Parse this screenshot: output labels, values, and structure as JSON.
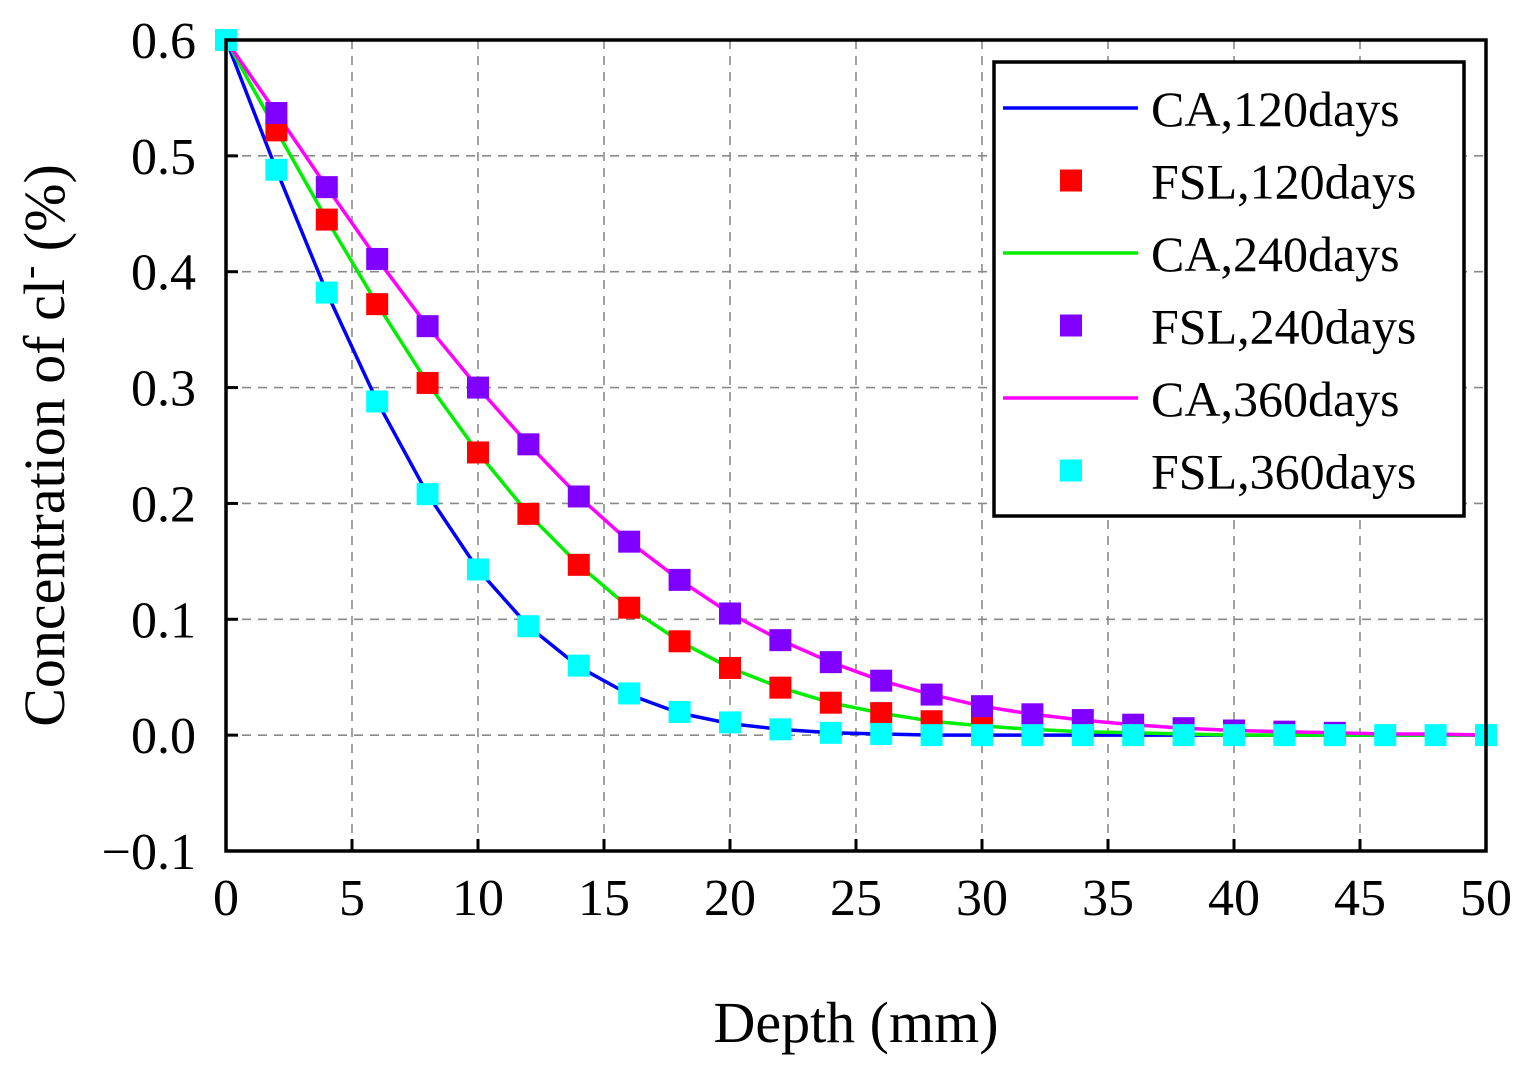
{
  "chart_data": {
    "type": "line",
    "title": "",
    "xlabel": "Depth (mm)",
    "ylabel_main": "Concentration of cl",
    "ylabel_sup": "-",
    "ylabel_tail": " (%)",
    "xlim": [
      0,
      50
    ],
    "ylim": [
      -0.1,
      0.6
    ],
    "xticks": [
      0,
      5,
      10,
      15,
      20,
      25,
      30,
      35,
      40,
      45,
      50
    ],
    "yticks": [
      -0.1,
      0.0,
      0.1,
      0.2,
      0.3,
      0.4,
      0.5,
      0.6
    ],
    "xtick_labels": [
      "0",
      "5",
      "10",
      "15",
      "20",
      "25",
      "30",
      "35",
      "40",
      "45",
      "50"
    ],
    "ytick_labels": [
      "−0.1",
      "0.0",
      "0.1",
      "0.2",
      "0.3",
      "0.4",
      "0.5",
      "0.6"
    ],
    "grid": true,
    "legend_position": "top-right",
    "series": [
      {
        "name": "CA,120days",
        "kind": "line",
        "color": "#0000ff",
        "x": [
          0,
          2,
          4,
          6,
          8,
          10,
          12,
          14,
          16,
          18,
          20,
          22,
          24,
          26,
          28,
          30,
          35,
          40,
          45,
          50
        ],
        "y": [
          0.6,
          0.488,
          0.382,
          0.288,
          0.208,
          0.143,
          0.094,
          0.059,
          0.035,
          0.019,
          0.01,
          0.005,
          0.002,
          0.001,
          0.0,
          0.0,
          0.0,
          0.0,
          0.0,
          0.0
        ]
      },
      {
        "name": "FSL,120days",
        "kind": "marker",
        "color": "#ff0000",
        "x": [
          2,
          4,
          6,
          8,
          10,
          12,
          14,
          16,
          18,
          20,
          22,
          24,
          26,
          28,
          30
        ],
        "y": [
          0.522,
          0.445,
          0.372,
          0.304,
          0.244,
          0.191,
          0.147,
          0.11,
          0.081,
          0.058,
          0.041,
          0.028,
          0.019,
          0.012,
          0.008
        ]
      },
      {
        "name": "CA,240days",
        "kind": "line",
        "color": "#00ee00",
        "x": [
          0,
          2,
          4,
          6,
          8,
          10,
          12,
          14,
          16,
          18,
          20,
          22,
          24,
          26,
          28,
          30,
          32,
          34,
          36,
          38,
          40,
          45,
          50
        ],
        "y": [
          0.6,
          0.522,
          0.445,
          0.372,
          0.304,
          0.244,
          0.191,
          0.147,
          0.11,
          0.081,
          0.058,
          0.041,
          0.028,
          0.019,
          0.012,
          0.008,
          0.005,
          0.003,
          0.002,
          0.001,
          0.0,
          0.0,
          0.0
        ]
      },
      {
        "name": "FSL,240days",
        "kind": "marker",
        "color": "#8000ff",
        "x": [
          2,
          4,
          6,
          8,
          10,
          12,
          14,
          16,
          18,
          20,
          22,
          24,
          26,
          28,
          30,
          32,
          34,
          36,
          38,
          40,
          42,
          44
        ],
        "y": [
          0.537,
          0.473,
          0.411,
          0.353,
          0.3,
          0.251,
          0.206,
          0.167,
          0.134,
          0.105,
          0.082,
          0.063,
          0.047,
          0.035,
          0.025,
          0.018,
          0.013,
          0.009,
          0.006,
          0.004,
          0.003,
          0.002
        ]
      },
      {
        "name": "CA,360days",
        "kind": "line",
        "color": "#ff00ff",
        "x": [
          0,
          2,
          4,
          6,
          8,
          10,
          12,
          14,
          16,
          18,
          20,
          22,
          24,
          26,
          28,
          30,
          32,
          34,
          36,
          38,
          40,
          42,
          44,
          46,
          48,
          50
        ],
        "y": [
          0.6,
          0.537,
          0.473,
          0.411,
          0.353,
          0.3,
          0.251,
          0.206,
          0.167,
          0.134,
          0.105,
          0.082,
          0.063,
          0.047,
          0.035,
          0.025,
          0.018,
          0.013,
          0.009,
          0.006,
          0.004,
          0.003,
          0.002,
          0.001,
          0.001,
          0.0
        ]
      },
      {
        "name": "FSL,360days",
        "kind": "marker",
        "color": "#00ffff",
        "x": [
          0,
          2,
          4,
          6,
          8,
          10,
          12,
          14,
          16,
          18,
          20,
          22,
          24,
          26,
          28,
          30,
          32,
          34,
          36,
          38,
          40,
          42,
          44,
          46,
          48,
          50
        ],
        "y": [
          0.6,
          0.488,
          0.382,
          0.288,
          0.208,
          0.143,
          0.094,
          0.06,
          0.036,
          0.02,
          0.011,
          0.005,
          0.002,
          0.001,
          0.0,
          0.0,
          0.0,
          0.0,
          0.0,
          0.0,
          0.0,
          0.0,
          0.0,
          0.0,
          0.0,
          0.0
        ]
      }
    ]
  }
}
